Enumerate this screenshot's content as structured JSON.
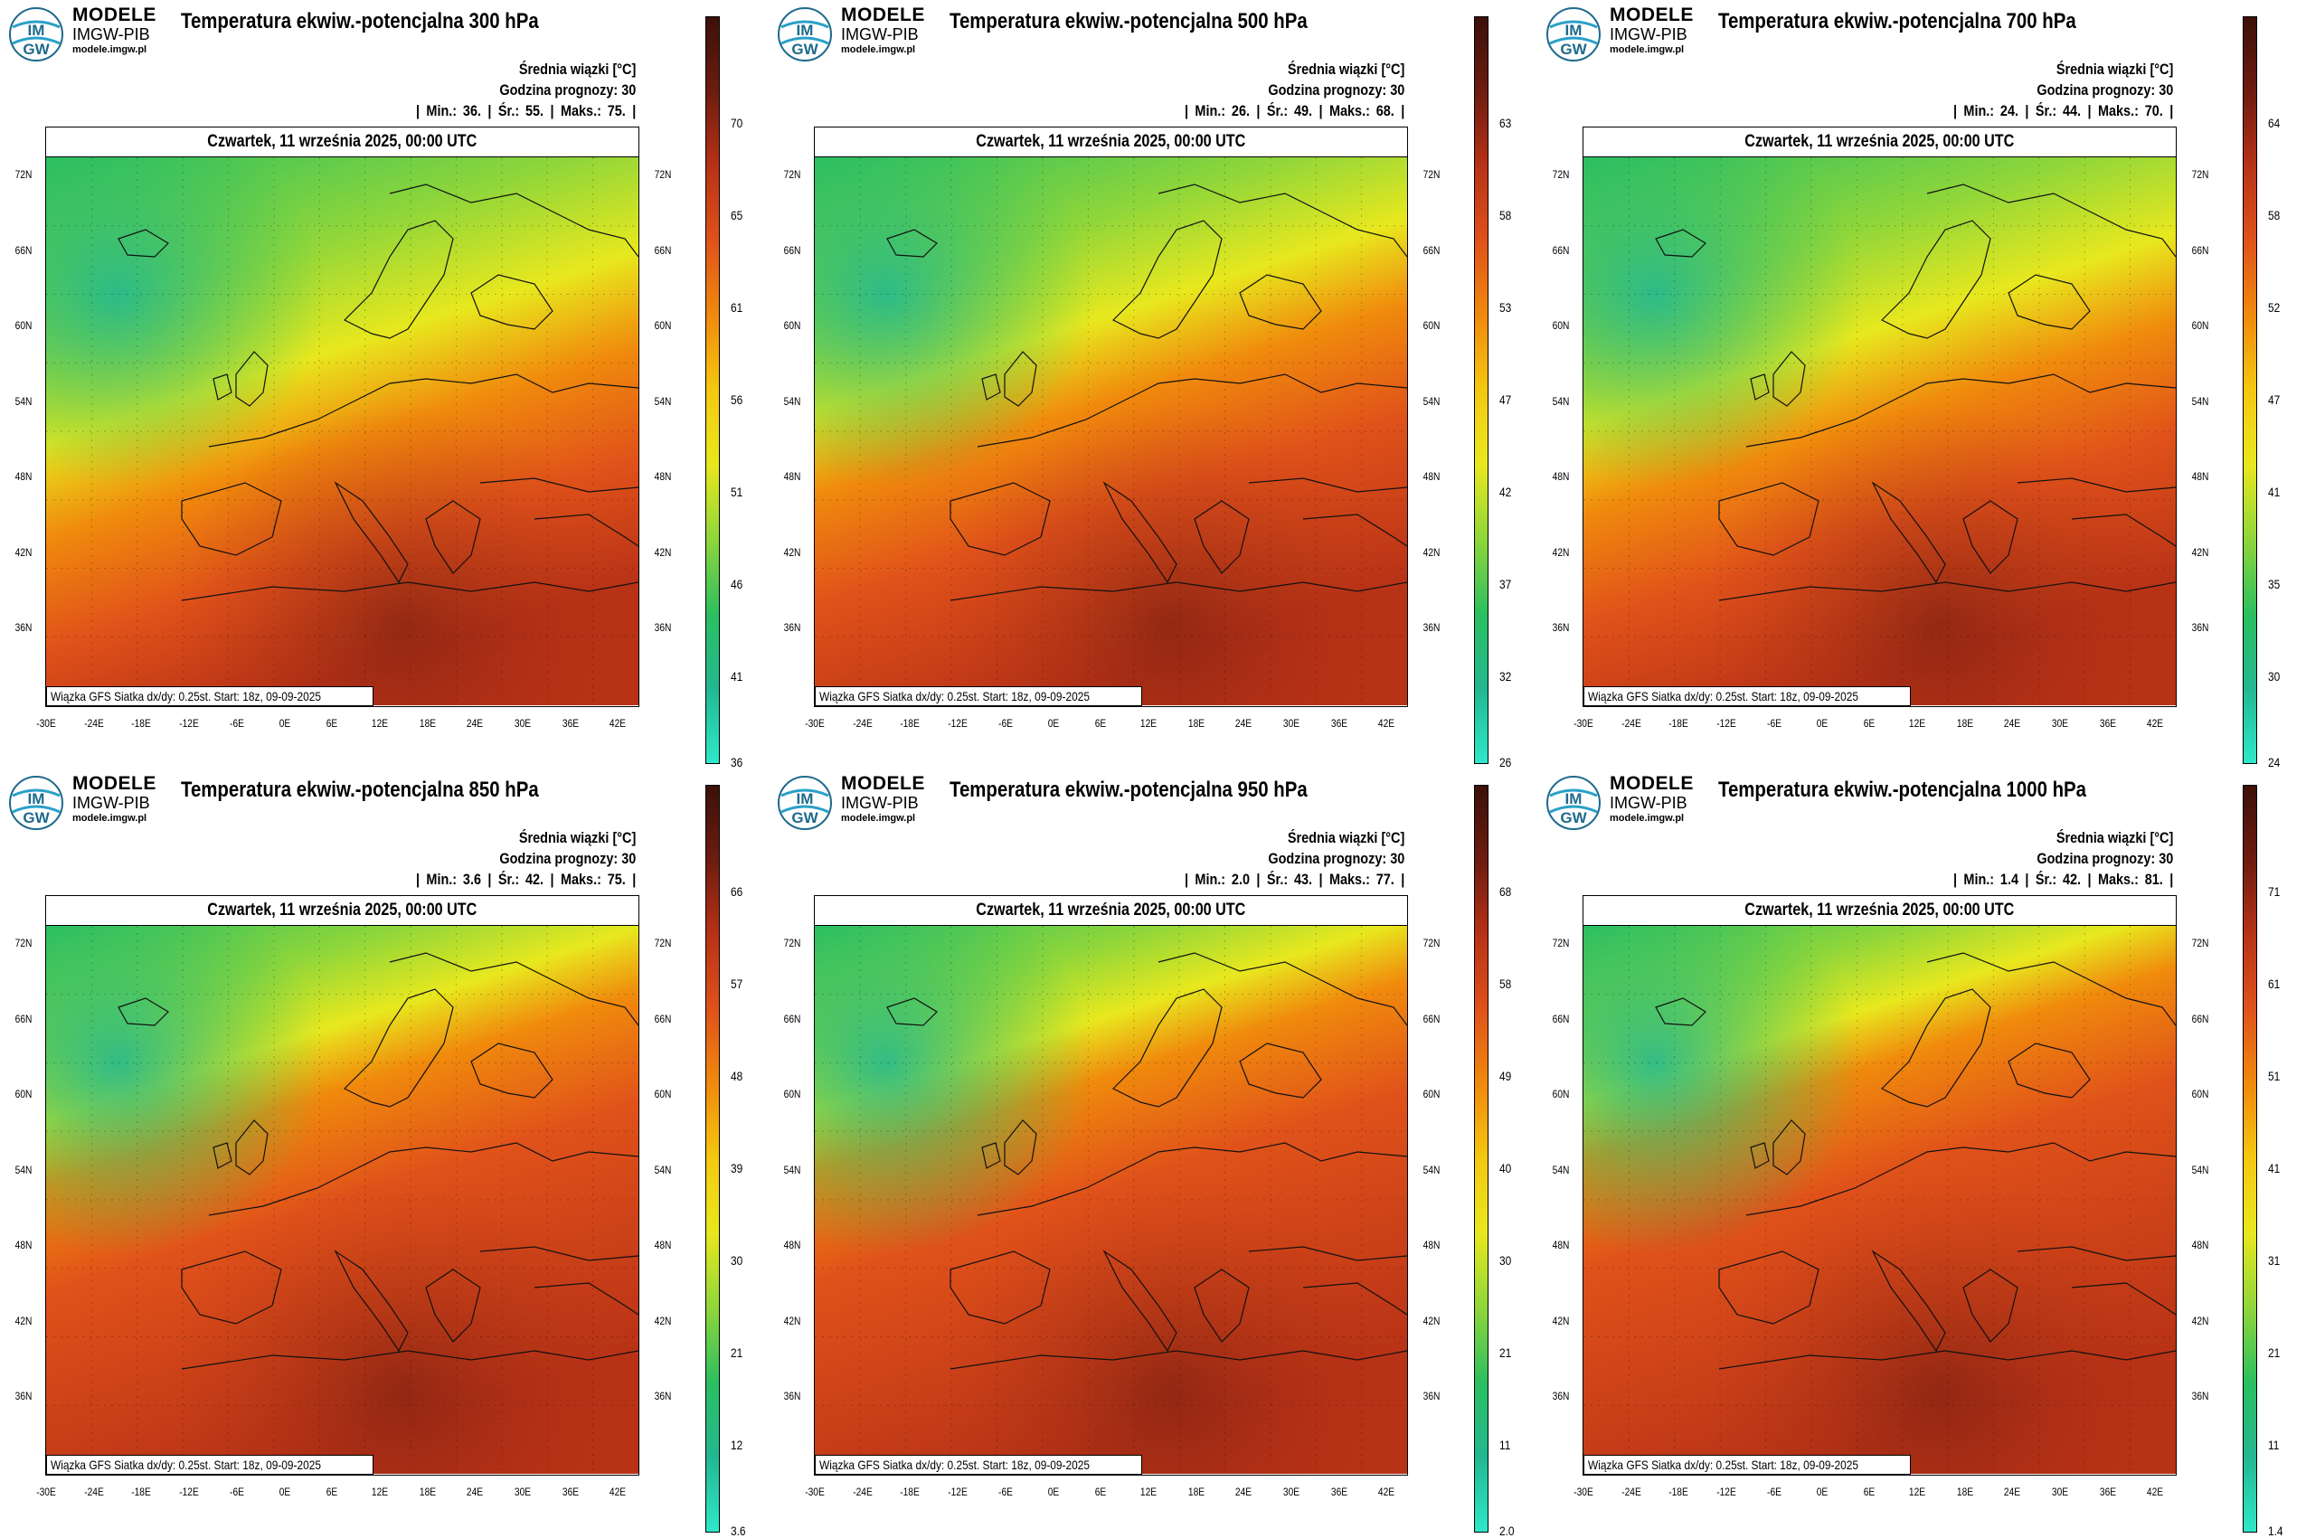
{
  "brand": {
    "line1": "MODELE",
    "line2": "IMGW-PIB",
    "line3": "modele.imgw.pl"
  },
  "logo_letters": {
    "top": "IM",
    "bottom": "GW"
  },
  "common": {
    "stat_label": "Średnia wiązki [°C]",
    "forecast_hour": "Godzina prognozy: 30",
    "date": "Czwartek, 11 września 2025, 00:00 UTC",
    "credit": "Wiązka GFS Siatka dx/dy: 0.25st. Start: 18z, 09-09-2025",
    "lat_labels": [
      "72N",
      "66N",
      "60N",
      "54N",
      "48N",
      "42N",
      "36N"
    ],
    "lon_labels": [
      "-30E",
      "-24E",
      "-18E",
      "-12E",
      "-6E",
      "0E",
      "6E",
      "12E",
      "18E",
      "24E",
      "30E",
      "36E",
      "42E"
    ]
  },
  "colors": {
    "scale": [
      "#2ee8c8",
      "#22b890",
      "#2bbf60",
      "#8fd63a",
      "#e8e81e",
      "#f5c810",
      "#f08a0c",
      "#e0521a",
      "#b83216",
      "#6e1c10",
      "#3c1008"
    ]
  },
  "panels": [
    {
      "title": "Temperatura ekwiw.-potencjalna 300 hPa",
      "min": "36.",
      "avg": "55.",
      "max": "75.",
      "ticks": [
        "70",
        "65",
        "61",
        "56",
        "51",
        "46",
        "41",
        "36"
      ],
      "cool_bias": 0.62
    },
    {
      "title": "Temperatura ekwiw.-potencjalna 500 hPa",
      "min": "26.",
      "avg": "49.",
      "max": "68.",
      "ticks": [
        "63",
        "58",
        "53",
        "47",
        "42",
        "37",
        "32",
        "26"
      ],
      "cool_bias": 0.55
    },
    {
      "title": "Temperatura ekwiw.-potencjalna 700 hPa",
      "min": "24.",
      "avg": "44.",
      "max": "70.",
      "ticks": [
        "64",
        "58",
        "52",
        "47",
        "41",
        "35",
        "30",
        "24"
      ],
      "cool_bias": 0.58
    },
    {
      "title": "Temperatura ekwiw.-potencjalna 850 hPa",
      "min": "3.6",
      "avg": "42.",
      "max": "75.",
      "ticks": [
        "66",
        "57",
        "48",
        "39",
        "30",
        "21",
        "12",
        "3.6"
      ],
      "cool_bias": 0.42
    },
    {
      "title": "Temperatura ekwiw.-potencjalna 950 hPa",
      "min": "2.0",
      "avg": "43.",
      "max": "77.",
      "ticks": [
        "68",
        "58",
        "49",
        "40",
        "30",
        "21",
        "11",
        "2.0"
      ],
      "cool_bias": 0.4
    },
    {
      "title": "Temperatura ekwiw.-potencjalna 1000 hPa",
      "min": "1.4",
      "avg": "42.",
      "max": "81.",
      "ticks": [
        "71",
        "61",
        "51",
        "41",
        "31",
        "21",
        "11",
        "1.4"
      ],
      "cool_bias": 0.38
    }
  ],
  "stat_words": {
    "min": "Min.:",
    "avg": "Śr.:",
    "max": "Maks.:"
  }
}
